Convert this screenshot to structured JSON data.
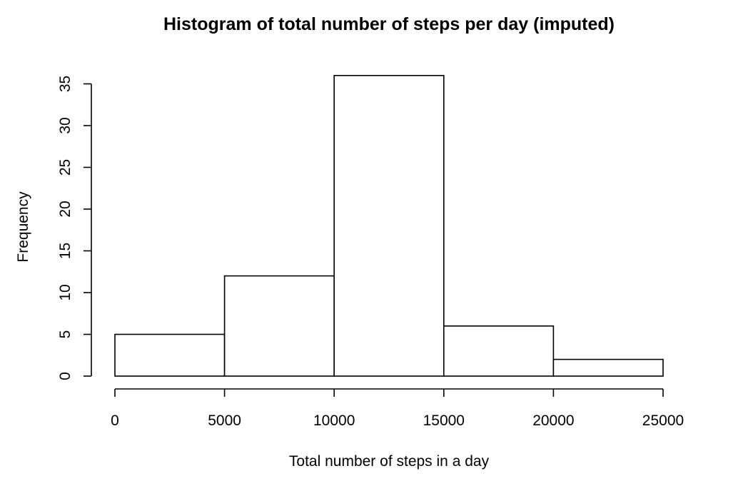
{
  "chart_data": {
    "type": "bar",
    "title": "Histogram of total number of steps per day (imputed)",
    "xlabel": "Total number of steps in a day",
    "ylabel": "Frequency",
    "bins": [
      {
        "start": 0,
        "end": 5000,
        "count": 5
      },
      {
        "start": 5000,
        "end": 10000,
        "count": 12
      },
      {
        "start": 10000,
        "end": 15000,
        "count": 36
      },
      {
        "start": 15000,
        "end": 20000,
        "count": 6
      },
      {
        "start": 20000,
        "end": 25000,
        "count": 2
      }
    ],
    "xlim": [
      0,
      25000
    ],
    "ylim": [
      0,
      35
    ],
    "x_ticks": [
      0,
      5000,
      10000,
      15000,
      20000,
      25000
    ],
    "y_ticks": [
      0,
      5,
      10,
      15,
      20,
      25,
      30,
      35
    ],
    "grid": false,
    "bar_fill": "#ffffff",
    "bar_stroke": "#000000"
  }
}
